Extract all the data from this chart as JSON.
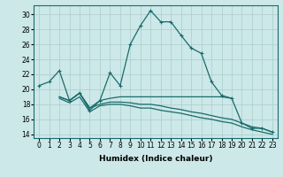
{
  "xlabel": "Humidex (Indice chaleur)",
  "bg_color": "#cce8e8",
  "grid_color": "#aacccc",
  "line_color": "#1a6b6b",
  "x_ticks": [
    0,
    1,
    2,
    3,
    4,
    5,
    6,
    7,
    8,
    9,
    10,
    11,
    12,
    13,
    14,
    15,
    16,
    17,
    18,
    19,
    20,
    21,
    22,
    23
  ],
  "y_ticks": [
    14,
    16,
    18,
    20,
    22,
    24,
    26,
    28,
    30
  ],
  "ylim": [
    13.5,
    31.2
  ],
  "xlim": [
    -0.5,
    23.5
  ],
  "series1_x": [
    0,
    1,
    2,
    3,
    4,
    5,
    6,
    7,
    8,
    9,
    10,
    11,
    12,
    13,
    14,
    15,
    16,
    17,
    18,
    19,
    20,
    21,
    22,
    23
  ],
  "series1_y": [
    20.5,
    21.0,
    22.5,
    18.5,
    19.5,
    17.2,
    18.5,
    22.2,
    20.5,
    26.0,
    28.5,
    30.5,
    29.0,
    29.0,
    27.2,
    25.5,
    24.8,
    21.0,
    19.2,
    18.8,
    15.5,
    14.8,
    14.8,
    14.3
  ],
  "series2_x": [
    2,
    3,
    4,
    5,
    6,
    7,
    8,
    9,
    10,
    11,
    12,
    13,
    14,
    15,
    16,
    17,
    18,
    19
  ],
  "series2_y": [
    19.0,
    18.5,
    19.5,
    17.5,
    18.5,
    18.8,
    19.0,
    19.0,
    19.0,
    19.0,
    19.0,
    19.0,
    19.0,
    19.0,
    19.0,
    19.0,
    19.0,
    18.8
  ],
  "series3_x": [
    2,
    3,
    4,
    5,
    6,
    7,
    8,
    9,
    10,
    11,
    12,
    13,
    14,
    15,
    16,
    17,
    18,
    19,
    20,
    21,
    22,
    23
  ],
  "series3_y": [
    19.0,
    18.5,
    19.5,
    17.5,
    18.0,
    18.3,
    18.3,
    18.2,
    18.0,
    18.0,
    17.8,
    17.5,
    17.3,
    17.0,
    16.8,
    16.5,
    16.2,
    16.0,
    15.5,
    15.0,
    14.8,
    14.3
  ],
  "series4_x": [
    2,
    3,
    4,
    5,
    6,
    7,
    8,
    9,
    10,
    11,
    12,
    13,
    14,
    15,
    16,
    17,
    18,
    19,
    20,
    21,
    22,
    23
  ],
  "series4_y": [
    18.8,
    18.2,
    19.0,
    17.0,
    17.8,
    18.0,
    18.0,
    17.8,
    17.5,
    17.5,
    17.2,
    17.0,
    16.8,
    16.5,
    16.2,
    16.0,
    15.7,
    15.5,
    15.0,
    14.6,
    14.3,
    14.0
  ],
  "markersize": 2.5,
  "linewidth": 0.9,
  "tick_fontsize": 5.5,
  "label_fontsize": 6.5
}
